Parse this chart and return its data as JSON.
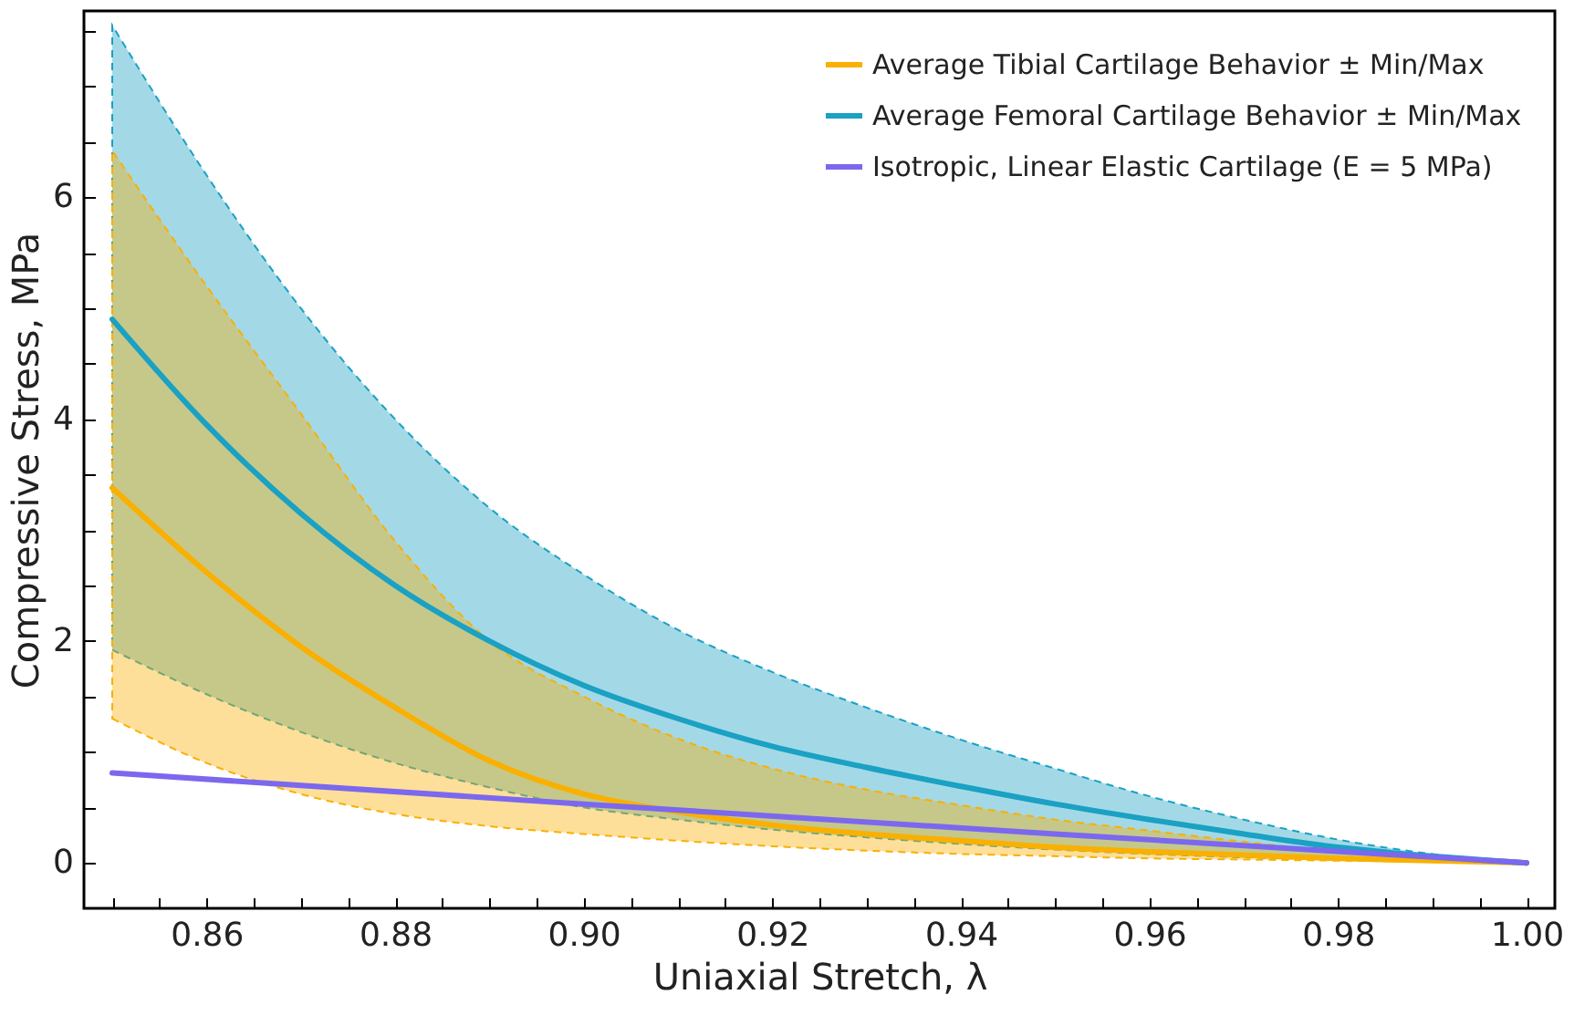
{
  "chart_data": {
    "type": "line",
    "xlabel": "Uniaxial Stretch, λ",
    "ylabel": "Compressive Stress, MPa",
    "legend": "top right",
    "xlim": [
      0.847,
      1.003
    ],
    "ylim": [
      -0.41,
      7.68
    ],
    "xticks": [
      {
        "value": 0.85,
        "label": null
      },
      {
        "value": 0.855,
        "label": null
      },
      {
        "value": 0.86,
        "label": "0.86"
      },
      {
        "value": 0.865,
        "label": null
      },
      {
        "value": 0.87,
        "label": null
      },
      {
        "value": 0.875,
        "label": null
      },
      {
        "value": 0.88,
        "label": "0.88"
      },
      {
        "value": 0.885,
        "label": null
      },
      {
        "value": 0.89,
        "label": null
      },
      {
        "value": 0.895,
        "label": null
      },
      {
        "value": 0.9,
        "label": "0.90"
      },
      {
        "value": 0.905,
        "label": null
      },
      {
        "value": 0.91,
        "label": null
      },
      {
        "value": 0.915,
        "label": null
      },
      {
        "value": 0.92,
        "label": "0.92"
      },
      {
        "value": 0.925,
        "label": null
      },
      {
        "value": 0.93,
        "label": null
      },
      {
        "value": 0.935,
        "label": null
      },
      {
        "value": 0.94,
        "label": "0.94"
      },
      {
        "value": 0.945,
        "label": null
      },
      {
        "value": 0.95,
        "label": null
      },
      {
        "value": 0.955,
        "label": null
      },
      {
        "value": 0.96,
        "label": "0.96"
      },
      {
        "value": 0.965,
        "label": null
      },
      {
        "value": 0.97,
        "label": null
      },
      {
        "value": 0.975,
        "label": null
      },
      {
        "value": 0.98,
        "label": "0.98"
      },
      {
        "value": 0.985,
        "label": null
      },
      {
        "value": 0.99,
        "label": null
      },
      {
        "value": 0.995,
        "label": null
      },
      {
        "value": 1.0,
        "label": "1.00"
      }
    ],
    "yticks": [
      0,
      {
        "value": 0.5,
        "label": null
      },
      {
        "value": 1,
        "label": null
      },
      {
        "value": 1.5,
        "label": null
      },
      2,
      {
        "value": 2.5,
        "label": null
      },
      {
        "value": 3,
        "label": null
      },
      {
        "value": 3.5,
        "label": null
      },
      4,
      {
        "value": 4.5,
        "label": null
      },
      {
        "value": 5,
        "label": null
      },
      {
        "value": 5.5,
        "label": null
      },
      6,
      {
        "value": 6.5,
        "label": null
      },
      {
        "value": 7,
        "label": null
      },
      {
        "value": 7.5,
        "label": null
      }
    ],
    "x": [
      0.85,
      0.86,
      0.87,
      0.88,
      0.89,
      0.9,
      0.91,
      0.92,
      0.93,
      0.94,
      0.95,
      0.96,
      0.97,
      0.98,
      0.99,
      1.0
    ],
    "series": [
      {
        "name": "Average Tibial Cartilage Behavior ± Min/Max",
        "color": "#f9b000",
        "values": [
          3.38,
          2.62,
          1.95,
          1.4,
          0.92,
          0.62,
          0.46,
          0.34,
          0.26,
          0.2,
          0.14,
          0.1,
          0.07,
          0.04,
          0.02,
          0
        ],
        "lower": [
          1.3,
          0.9,
          0.62,
          0.44,
          0.33,
          0.26,
          0.2,
          0.15,
          0.11,
          0.08,
          0.06,
          0.04,
          0.03,
          0.02,
          0.01,
          0
        ],
        "upper": [
          6.42,
          5.2,
          4.05,
          2.9,
          2.0,
          1.5,
          1.12,
          0.85,
          0.66,
          0.52,
          0.39,
          0.29,
          0.19,
          0.1,
          0.04,
          0
        ]
      },
      {
        "name": "Average Femoral Cartilage Behavior ± Min/Max",
        "color": "#1aa1c3",
        "values": [
          4.9,
          3.95,
          3.15,
          2.5,
          2.0,
          1.6,
          1.3,
          1.05,
          0.86,
          0.69,
          0.53,
          0.39,
          0.26,
          0.14,
          0.06,
          0
        ],
        "lower": [
          1.92,
          1.52,
          1.18,
          0.9,
          0.68,
          0.5,
          0.39,
          0.3,
          0.23,
          0.17,
          0.12,
          0.08,
          0.05,
          0.03,
          0.01,
          0
        ],
        "upper": [
          7.55,
          6.2,
          5.0,
          4.0,
          3.2,
          2.6,
          2.1,
          1.72,
          1.4,
          1.11,
          0.85,
          0.6,
          0.39,
          0.21,
          0.08,
          0
        ]
      },
      {
        "name": "Isotropic, Linear Elastic Cartilage (E = 5 MPa)",
        "color": "#7b68ee",
        "x": [
          0.85,
          0.9,
          0.95,
          1.0
        ],
        "values": [
          0.81,
          0.53,
          0.26,
          0
        ]
      }
    ]
  }
}
